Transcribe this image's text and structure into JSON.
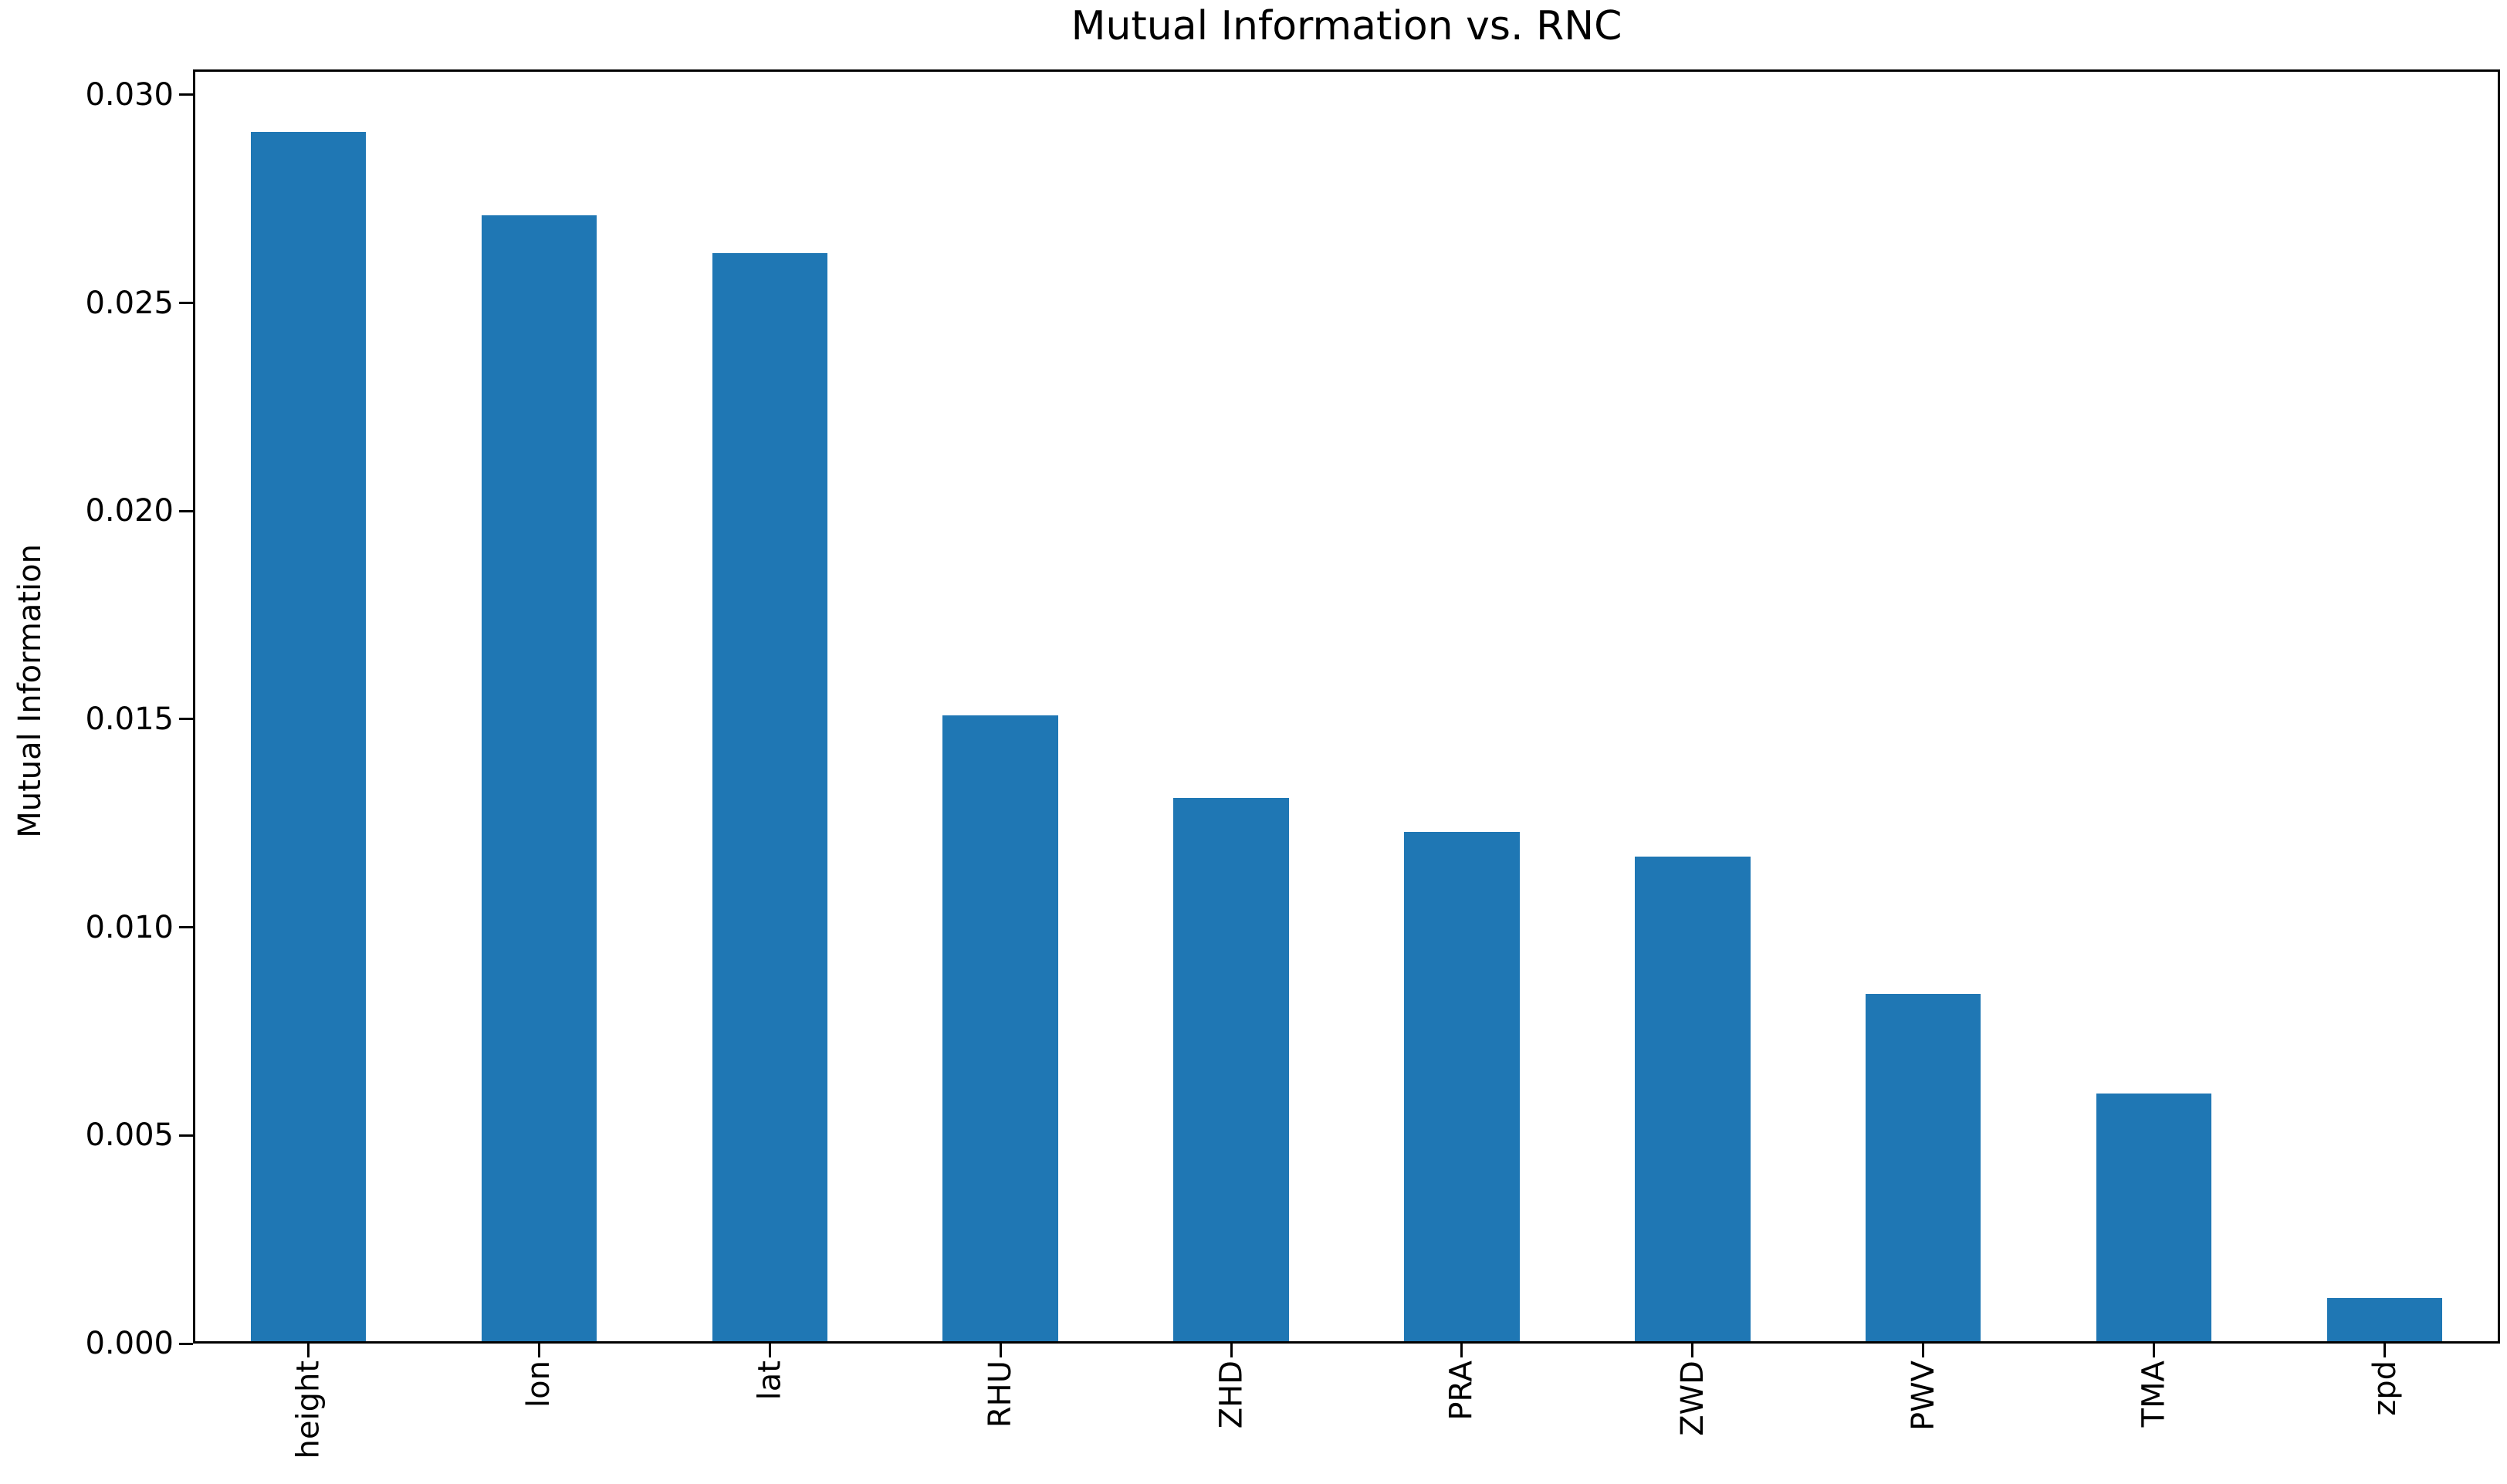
{
  "chart_data": {
    "type": "bar",
    "title": "Mutual Information vs. RNC",
    "ylabel": "Mutual Information",
    "xlabel": "",
    "categories": [
      "height",
      "lon",
      "lat",
      "RHU",
      "ZHD",
      "PRA",
      "ZWD",
      "PWV",
      "TMA",
      "zpd"
    ],
    "values": [
      0.0291,
      0.0271,
      0.0262,
      0.0151,
      0.0131,
      0.0123,
      0.0117,
      0.0084,
      0.006,
      0.0011
    ],
    "yticks": [
      0.0,
      0.005,
      0.01,
      0.015,
      0.02,
      0.025,
      0.03
    ],
    "ytick_labels": [
      "0.000",
      "0.005",
      "0.010",
      "0.015",
      "0.020",
      "0.025",
      "0.030"
    ],
    "ylim": [
      0,
      0.03061
    ],
    "bar_color": "#1f77b4",
    "axis_color": "#000000",
    "background_color": "#ffffff",
    "grid": false,
    "legend": null,
    "xtick_rotation_deg": 90
  }
}
